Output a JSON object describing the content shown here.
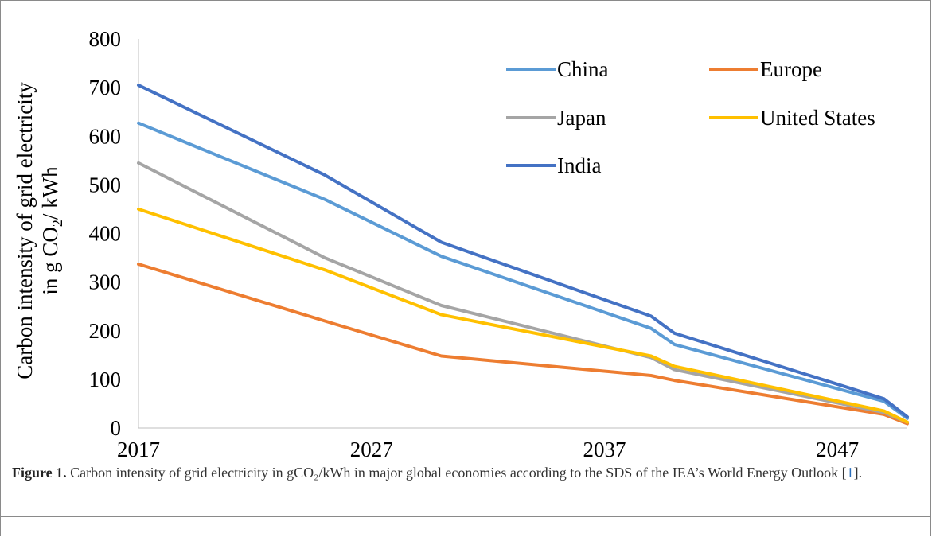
{
  "caption": {
    "label": "Figure 1.",
    "text_before": " Carbon intensity of grid electricity in gCO₂/kWh in major global economies according to the SDS of the IEA’s World Energy Outlook [",
    "ref": "1",
    "text_after": "]."
  },
  "chart_data": {
    "type": "line",
    "title": "",
    "xlabel": "",
    "ylabel_line1": "Carbon intensity of grid electricity",
    "ylabel_line2_prefix": "in g CO",
    "ylabel_line2_sub": "2",
    "ylabel_line2_suffix": "/ kWh",
    "xlim": [
      2017,
      2050
    ],
    "ylim": [
      0,
      800
    ],
    "x_ticks": [
      "2017",
      "2027",
      "2037",
      "2047"
    ],
    "y_ticks": [
      "0",
      "100",
      "200",
      "300",
      "400",
      "500",
      "600",
      "700",
      "800"
    ],
    "grid": false,
    "legend_position": "top-right",
    "series": [
      {
        "name": "China",
        "color": "#5b9bd5",
        "x": [
          2017,
          2025,
          2030,
          2039,
          2040,
          2049,
          2050
        ],
        "values": [
          627,
          470,
          353,
          205,
          172,
          55,
          20
        ]
      },
      {
        "name": "Europe",
        "color": "#ed7d31",
        "x": [
          2017,
          2025,
          2030,
          2039,
          2040,
          2049,
          2050
        ],
        "values": [
          337,
          220,
          148,
          108,
          98,
          28,
          9
        ]
      },
      {
        "name": "Japan",
        "color": "#a5a5a5",
        "x": [
          2017,
          2025,
          2030,
          2039,
          2040,
          2049,
          2050
        ],
        "values": [
          545,
          350,
          252,
          145,
          120,
          32,
          12
        ]
      },
      {
        "name": "United States",
        "color": "#ffc000",
        "x": [
          2017,
          2025,
          2030,
          2039,
          2040,
          2049,
          2050
        ],
        "values": [
          450,
          325,
          233,
          148,
          127,
          35,
          12
        ]
      },
      {
        "name": "India",
        "color": "#4472c4",
        "x": [
          2017,
          2025,
          2030,
          2039,
          2040,
          2049,
          2050
        ],
        "values": [
          705,
          520,
          382,
          230,
          195,
          60,
          23
        ]
      }
    ]
  }
}
